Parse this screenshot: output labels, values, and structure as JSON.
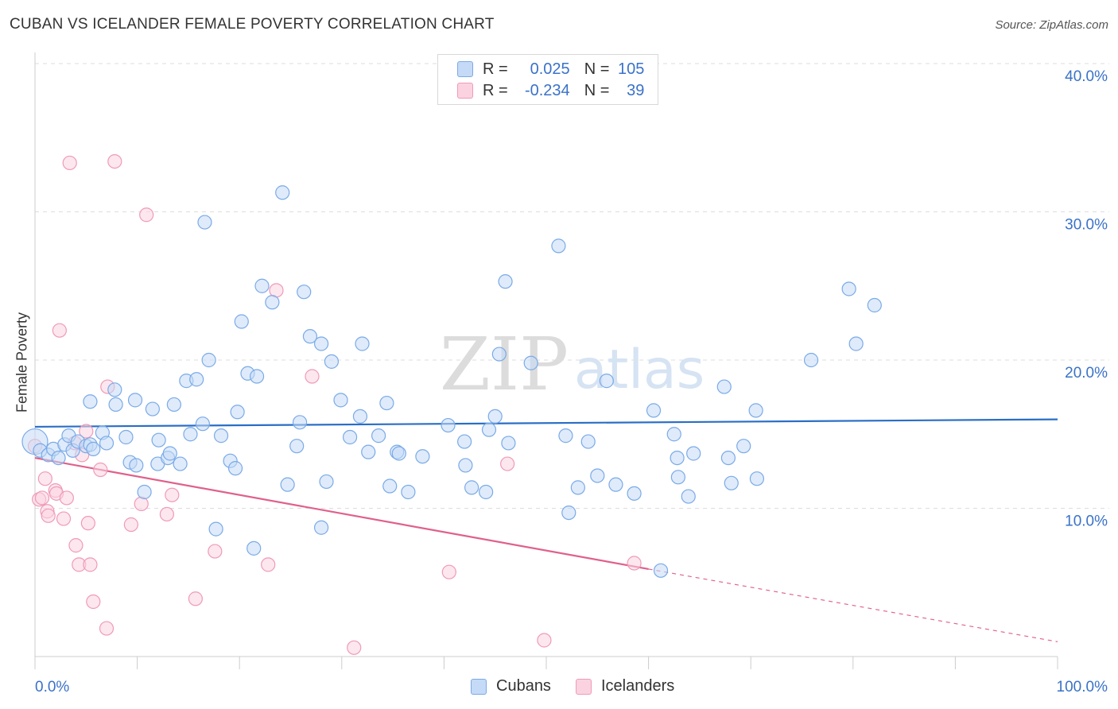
{
  "header": {
    "title": "CUBAN VS ICELANDER FEMALE POVERTY CORRELATION CHART",
    "source": "Source: ZipAtlas.com"
  },
  "watermark": {
    "zip": "ZIP",
    "atlas": "atlas"
  },
  "legend": {
    "rows": [
      {
        "r_label": "R =",
        "r_value": "0.025",
        "n_label": "N =",
        "n_value": "105",
        "color": "#7aaae8",
        "fill": "#c5daf6"
      },
      {
        "r_label": "R =",
        "r_value": "-0.234",
        "n_label": "N =",
        "n_value": "39",
        "color": "#f09ab6",
        "fill": "#fbd3e0"
      }
    ]
  },
  "bottom_legend": {
    "cubans": "Cubans",
    "icelanders": "Icelanders"
  },
  "colors": {
    "blue": "#7aaae8",
    "blue_fill": "#c5daf6",
    "blue_line": "#2a6ec6",
    "pink": "#f09ab6",
    "pink_fill": "#fbd3e0",
    "pink_line": "#e0608a",
    "tick_text": "#3a72c8",
    "grid": "#dddddd"
  },
  "chart_data": {
    "type": "scatter",
    "title": "CUBAN VS ICELANDER FEMALE POVERTY CORRELATION CHART",
    "xlabel": "",
    "ylabel": "Female Poverty",
    "xlim": [
      0,
      100
    ],
    "ylim": [
      0,
      40
    ],
    "x_tick_labels": [
      "0.0%",
      "100.0%"
    ],
    "y_ticks": [
      10,
      20,
      30,
      40
    ],
    "y_tick_labels": [
      "10.0%",
      "20.0%",
      "30.0%",
      "40.0%"
    ],
    "grid": true,
    "series": [
      {
        "name": "Cubans",
        "r": 0.025,
        "n": 105,
        "trend": {
          "x": [
            0,
            100
          ],
          "y": [
            15.5,
            16.0
          ]
        },
        "points": [
          [
            0.0,
            14.5
          ],
          [
            0.5,
            13.9
          ],
          [
            1.3,
            13.6
          ],
          [
            1.8,
            14.0
          ],
          [
            2.3,
            13.4
          ],
          [
            2.9,
            14.3
          ],
          [
            3.3,
            14.9
          ],
          [
            3.7,
            13.9
          ],
          [
            4.2,
            14.5
          ],
          [
            5.0,
            14.2
          ],
          [
            5.4,
            14.3
          ],
          [
            5.7,
            14.0
          ],
          [
            6.6,
            15.1
          ],
          [
            5.4,
            17.2
          ],
          [
            7.0,
            14.4
          ],
          [
            7.9,
            17.0
          ],
          [
            7.8,
            18.0
          ],
          [
            8.9,
            14.8
          ],
          [
            9.3,
            13.1
          ],
          [
            9.9,
            12.9
          ],
          [
            9.8,
            17.3
          ],
          [
            10.7,
            11.1
          ],
          [
            11.5,
            16.7
          ],
          [
            12.1,
            14.6
          ],
          [
            12.0,
            13.0
          ],
          [
            13.0,
            13.4
          ],
          [
            13.2,
            13.7
          ],
          [
            13.6,
            17.0
          ],
          [
            14.2,
            13.0
          ],
          [
            14.8,
            18.6
          ],
          [
            15.2,
            15.0
          ],
          [
            15.8,
            18.7
          ],
          [
            16.4,
            15.7
          ],
          [
            16.6,
            29.3
          ],
          [
            17.0,
            20.0
          ],
          [
            17.7,
            8.6
          ],
          [
            18.2,
            14.9
          ],
          [
            19.1,
            13.2
          ],
          [
            19.6,
            12.7
          ],
          [
            19.8,
            16.5
          ],
          [
            20.2,
            22.6
          ],
          [
            20.8,
            19.1
          ],
          [
            21.4,
            7.3
          ],
          [
            21.7,
            18.9
          ],
          [
            22.2,
            25.0
          ],
          [
            23.2,
            23.9
          ],
          [
            24.2,
            31.3
          ],
          [
            24.7,
            11.6
          ],
          [
            25.6,
            14.2
          ],
          [
            25.9,
            15.8
          ],
          [
            26.3,
            24.6
          ],
          [
            26.9,
            21.6
          ],
          [
            28.0,
            21.1
          ],
          [
            28.0,
            8.7
          ],
          [
            28.5,
            11.8
          ],
          [
            29.0,
            19.9
          ],
          [
            29.9,
            17.3
          ],
          [
            30.8,
            14.8
          ],
          [
            31.8,
            16.2
          ],
          [
            32.0,
            21.1
          ],
          [
            32.6,
            13.8
          ],
          [
            33.6,
            14.9
          ],
          [
            34.4,
            17.1
          ],
          [
            34.7,
            11.5
          ],
          [
            35.4,
            13.8
          ],
          [
            35.6,
            13.7
          ],
          [
            36.5,
            11.1
          ],
          [
            37.9,
            13.5
          ],
          [
            40.4,
            15.6
          ],
          [
            42.0,
            14.5
          ],
          [
            42.1,
            12.9
          ],
          [
            42.7,
            11.4
          ],
          [
            44.1,
            11.1
          ],
          [
            44.4,
            15.3
          ],
          [
            45.0,
            16.2
          ],
          [
            45.4,
            20.4
          ],
          [
            46.0,
            25.3
          ],
          [
            46.3,
            14.4
          ],
          [
            48.5,
            19.8
          ],
          [
            51.2,
            27.7
          ],
          [
            51.9,
            14.9
          ],
          [
            52.2,
            9.7
          ],
          [
            53.1,
            11.4
          ],
          [
            54.1,
            14.5
          ],
          [
            55.0,
            12.2
          ],
          [
            55.9,
            18.6
          ],
          [
            56.8,
            11.6
          ],
          [
            58.6,
            11.0
          ],
          [
            60.5,
            16.6
          ],
          [
            61.2,
            5.8
          ],
          [
            62.5,
            15.0
          ],
          [
            62.8,
            13.4
          ],
          [
            62.9,
            12.1
          ],
          [
            63.9,
            10.8
          ],
          [
            64.4,
            13.7
          ],
          [
            67.4,
            18.2
          ],
          [
            67.8,
            13.4
          ],
          [
            68.1,
            11.7
          ],
          [
            69.3,
            14.2
          ],
          [
            70.5,
            16.6
          ],
          [
            70.6,
            12.0
          ],
          [
            75.9,
            20.0
          ],
          [
            79.6,
            24.8
          ],
          [
            80.3,
            21.1
          ],
          [
            82.1,
            23.7
          ]
        ]
      },
      {
        "name": "Icelanders",
        "r": -0.234,
        "n": 39,
        "trend": {
          "x": [
            0,
            60.0,
            100
          ],
          "y": [
            13.4,
            5.9,
            1.0
          ]
        },
        "points": [
          [
            0.0,
            14.2
          ],
          [
            0.4,
            10.6
          ],
          [
            0.7,
            10.7
          ],
          [
            1.0,
            12.0
          ],
          [
            1.2,
            9.8
          ],
          [
            1.3,
            9.5
          ],
          [
            2.0,
            11.2
          ],
          [
            2.1,
            11.0
          ],
          [
            2.4,
            22.0
          ],
          [
            2.8,
            9.3
          ],
          [
            3.1,
            10.7
          ],
          [
            3.4,
            33.3
          ],
          [
            3.9,
            14.4
          ],
          [
            4.0,
            7.5
          ],
          [
            4.3,
            6.2
          ],
          [
            4.6,
            13.6
          ],
          [
            5.0,
            15.2
          ],
          [
            5.2,
            9.0
          ],
          [
            5.4,
            6.2
          ],
          [
            5.7,
            3.7
          ],
          [
            6.4,
            12.6
          ],
          [
            7.0,
            1.9
          ],
          [
            7.1,
            18.2
          ],
          [
            7.8,
            33.4
          ],
          [
            9.4,
            8.9
          ],
          [
            10.4,
            10.3
          ],
          [
            10.9,
            29.8
          ],
          [
            12.9,
            9.6
          ],
          [
            13.4,
            10.9
          ],
          [
            15.7,
            3.9
          ],
          [
            17.6,
            7.1
          ],
          [
            22.8,
            6.2
          ],
          [
            23.6,
            24.7
          ],
          [
            27.1,
            18.9
          ],
          [
            31.2,
            0.6
          ],
          [
            40.5,
            5.7
          ],
          [
            46.2,
            13.0
          ],
          [
            49.8,
            1.1
          ],
          [
            58.6,
            6.3
          ]
        ]
      }
    ]
  }
}
